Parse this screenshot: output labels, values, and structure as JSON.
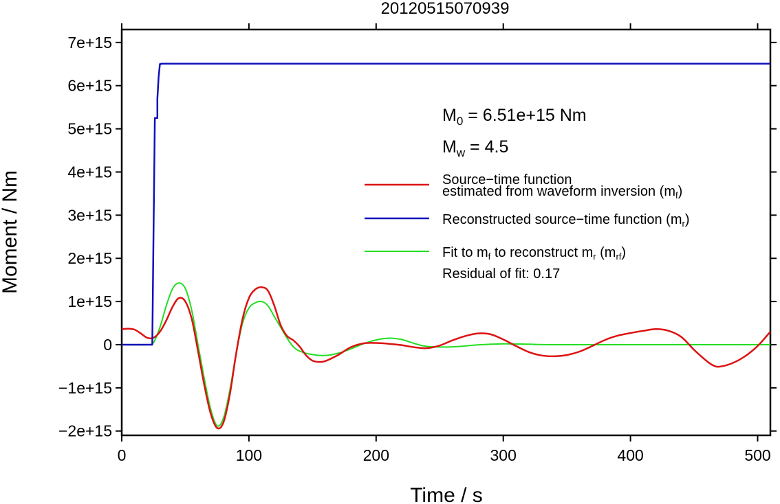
{
  "chart_data": {
    "type": "line",
    "title": "20120515070939",
    "xlabel": "Time / s",
    "ylabel": "Moment / Nm",
    "xlim": [
      0,
      510
    ],
    "ylim": [
      -2100000000000000.0,
      7300000000000000.0
    ],
    "xticks": [
      0,
      100,
      200,
      300,
      400,
      500
    ],
    "xtick_labels": [
      "0",
      "100",
      "200",
      "300",
      "400",
      "500"
    ],
    "yticks": [
      -2000000000000000.0,
      -1000000000000000.0,
      0,
      1000000000000000.0,
      2000000000000000.0,
      3000000000000000.0,
      4000000000000000.0,
      5000000000000000.0,
      6000000000000000.0,
      7000000000000000.0
    ],
    "ytick_labels": [
      "−2e+15",
      "−1e+15",
      "0",
      "1e+15",
      "2e+15",
      "3e+15",
      "4e+15",
      "5e+15",
      "6e+15",
      "7e+15"
    ],
    "grid": false,
    "annotations": {
      "m0_label": "M",
      "m0_sub": "0",
      "m0_value": " = 6.51e+15 Nm",
      "mw_label": "M",
      "mw_sub": "w",
      "mw_value": " = 4.5",
      "residual": "Residual of fit: 0.17"
    },
    "legend": {
      "placement": "center-right",
      "entries": [
        {
          "line1": "Source−time function",
          "line2": "estimated from waveform inversion (m",
          "sub": "f",
          "tail": ")",
          "color": "#dd1111"
        },
        {
          "line1": "Reconstructed source−time function (m",
          "sub": "r",
          "tail": ")",
          "color": "#1111bb"
        },
        {
          "line1": "Fit to m",
          "sub1": "f",
          "mid": " to reconstruct m",
          "sub2": "r",
          "mid2": " (m",
          "sub3": "rf",
          "tail": ")",
          "color": "#22dd22"
        }
      ]
    },
    "series": [
      {
        "color": "#1111bb",
        "x": [
          0,
          24,
          25,
          26,
          26,
          28,
          28,
          29,
          30,
          31,
          31,
          510
        ],
        "y": [
          0,
          0,
          2600000000000000.0,
          5200000000000000.0,
          5250000000000000.0,
          5250000000000000.0,
          5700000000000000.0,
          6200000000000000.0,
          6500000000000000.0,
          6500000000000000.0,
          6510000000000000.0,
          6510000000000000.0
        ]
      },
      {
        "color": "#dd1111",
        "x": [
          0,
          5,
          10,
          15,
          20,
          25,
          30,
          35,
          40,
          45,
          50,
          55,
          60,
          65,
          70,
          75,
          80,
          85,
          90,
          95,
          100,
          105,
          110,
          115,
          120,
          125,
          130,
          135,
          140,
          145,
          150,
          155,
          160,
          170,
          180,
          190,
          200,
          210,
          220,
          230,
          240,
          250,
          260,
          270,
          280,
          290,
          300,
          310,
          320,
          330,
          340,
          350,
          360,
          370,
          380,
          390,
          400,
          410,
          420,
          430,
          440,
          450,
          460,
          465,
          470,
          480,
          490,
          500,
          510
        ],
        "y": [
          360000000000000.0,
          370000000000000.0,
          350000000000000.0,
          260000000000000.0,
          160000000000000.0,
          160000000000000.0,
          300000000000000.0,
          560000000000000.0,
          880000000000000.0,
          1080000000000000.0,
          1000000000000000.0,
          600000000000000.0,
          -150000000000000.0,
          -950000000000000.0,
          -1600000000000000.0,
          -1930000000000000.0,
          -1800000000000000.0,
          -1150000000000000.0,
          -200000000000000.0,
          600000000000000.0,
          1080000000000000.0,
          1280000000000000.0,
          1330000000000000.0,
          1250000000000000.0,
          900000000000000.0,
          450000000000000.0,
          200000000000000.0,
          100000000000000.0,
          -50000000000000.0,
          -250000000000000.0,
          -370000000000000.0,
          -400000000000000.0,
          -380000000000000.0,
          -240000000000000.0,
          -60000000000000.0,
          30000000000000.0,
          40000000000000.0,
          20000000000000.0,
          -10000000000000.0,
          -60000000000000.0,
          -80000000000000.0,
          -20000000000000.0,
          100000000000000.0,
          200000000000000.0,
          260000000000000.0,
          240000000000000.0,
          120000000000000.0,
          -30000000000000.0,
          -170000000000000.0,
          -250000000000000.0,
          -270000000000000.0,
          -240000000000000.0,
          -160000000000000.0,
          -30000000000000.0,
          110000000000000.0,
          210000000000000.0,
          270000000000000.0,
          320000000000000.0,
          360000000000000.0,
          320000000000000.0,
          180000000000000.0,
          -120000000000000.0,
          -380000000000000.0,
          -480000000000000.0,
          -510000000000000.0,
          -430000000000000.0,
          -270000000000000.0,
          -30000000000000.0,
          300000000000000.0
        ]
      },
      {
        "color": "#22dd22",
        "x": [
          0,
          20,
          25,
          30,
          35,
          40,
          45,
          50,
          55,
          60,
          65,
          70,
          75,
          80,
          85,
          90,
          95,
          100,
          105,
          110,
          115,
          120,
          125,
          130,
          135,
          140,
          150,
          160,
          170,
          180,
          190,
          200,
          210,
          220,
          230,
          240,
          260,
          280,
          300,
          320,
          340,
          400,
          450,
          510
        ],
        "y": [
          0,
          0,
          50000000000000.0,
          400000000000000.0,
          900000000000000.0,
          1300000000000000.0,
          1430000000000000.0,
          1300000000000000.0,
          800000000000000.0,
          0,
          -800000000000000.0,
          -1500000000000000.0,
          -1880000000000000.0,
          -1700000000000000.0,
          -1050000000000000.0,
          -200000000000000.0,
          500000000000000.0,
          850000000000000.0,
          970000000000000.0,
          1000000000000000.0,
          900000000000000.0,
          650000000000000.0,
          400000000000000.0,
          150000000000000.0,
          -50000000000000.0,
          -150000000000000.0,
          -230000000000000.0,
          -250000000000000.0,
          -200000000000000.0,
          -100000000000000.0,
          20000000000000.0,
          110000000000000.0,
          150000000000000.0,
          120000000000000.0,
          30000000000000.0,
          -40000000000000.0,
          -50000000000000.0,
          -5000000000000.0,
          20000000000000.0,
          10000000000000.0,
          0,
          0,
          0,
          0
        ]
      }
    ]
  }
}
